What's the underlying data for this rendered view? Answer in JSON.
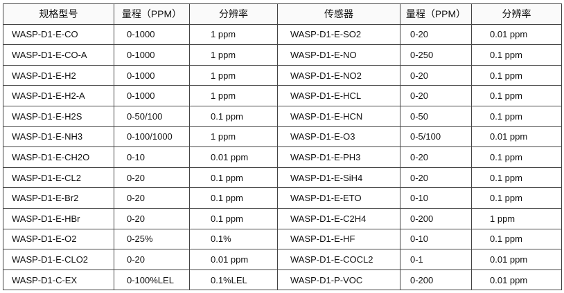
{
  "headers": [
    "规格型号",
    "量程（PPM）",
    "分辨率",
    "传感器",
    "量程（PPM）",
    "分辨率"
  ],
  "rows": [
    [
      "WASP-D1-E-CO",
      "0-1000",
      "1 ppm",
      "WASP-D1-E-SO2",
      "0-20",
      "0.01 ppm"
    ],
    [
      "WASP-D1-E-CO-A",
      "0-1000",
      "1 ppm",
      "WASP-D1-E-NO",
      "0-250",
      "0.1 ppm"
    ],
    [
      "WASP-D1-E-H2",
      "0-1000",
      "1 ppm",
      "WASP-D1-E-NO2",
      "0-20",
      "0.1 ppm"
    ],
    [
      "WASP-D1-E-H2-A",
      "0-1000",
      "1 ppm",
      "WASP-D1-E-HCL",
      "0-20",
      "0.1 ppm"
    ],
    [
      "WASP-D1-E-H2S",
      "0-50/100",
      "0.1 ppm",
      "WASP-D1-E-HCN",
      "0-50",
      "0.1 ppm"
    ],
    [
      "WASP-D1-E-NH3",
      "0-100/1000",
      "1 ppm",
      "WASP-D1-E-O3",
      "0-5/100",
      "0.01 ppm"
    ],
    [
      "WASP-D1-E-CH2O",
      "0-10",
      "0.01 ppm",
      "WASP-D1-E-PH3",
      "0-20",
      "0.1 ppm"
    ],
    [
      "WASP-D1-E-CL2",
      "0-20",
      "0.1 ppm",
      "WASP-D1-E-SiH4",
      "0-20",
      "0.1 ppm"
    ],
    [
      "WASP-D1-E-Br2",
      "0-20",
      "0.1 ppm",
      "WASP-D1-E-ETO",
      "0-10",
      "0.1 ppm"
    ],
    [
      "WASP-D1-E-HBr",
      "0-20",
      "0.1 ppm",
      "WASP-D1-E-C2H4",
      "0-200",
      "1 ppm"
    ],
    [
      "WASP-D1-E-O2",
      "0-25%",
      "0.1%",
      "WASP-D1-E-HF",
      "0-10",
      "0.1 ppm"
    ],
    [
      "WASP-D1-E-CLO2",
      "0-20",
      "0.01 ppm",
      "WASP-D1-E-COCL2",
      "0-1",
      "0.01 ppm"
    ],
    [
      "WASP-D1-C-EX",
      "0-100%LEL",
      "0.1%LEL",
      "WASP-D1-P-VOC",
      "0-200",
      "0.01 ppm"
    ]
  ]
}
